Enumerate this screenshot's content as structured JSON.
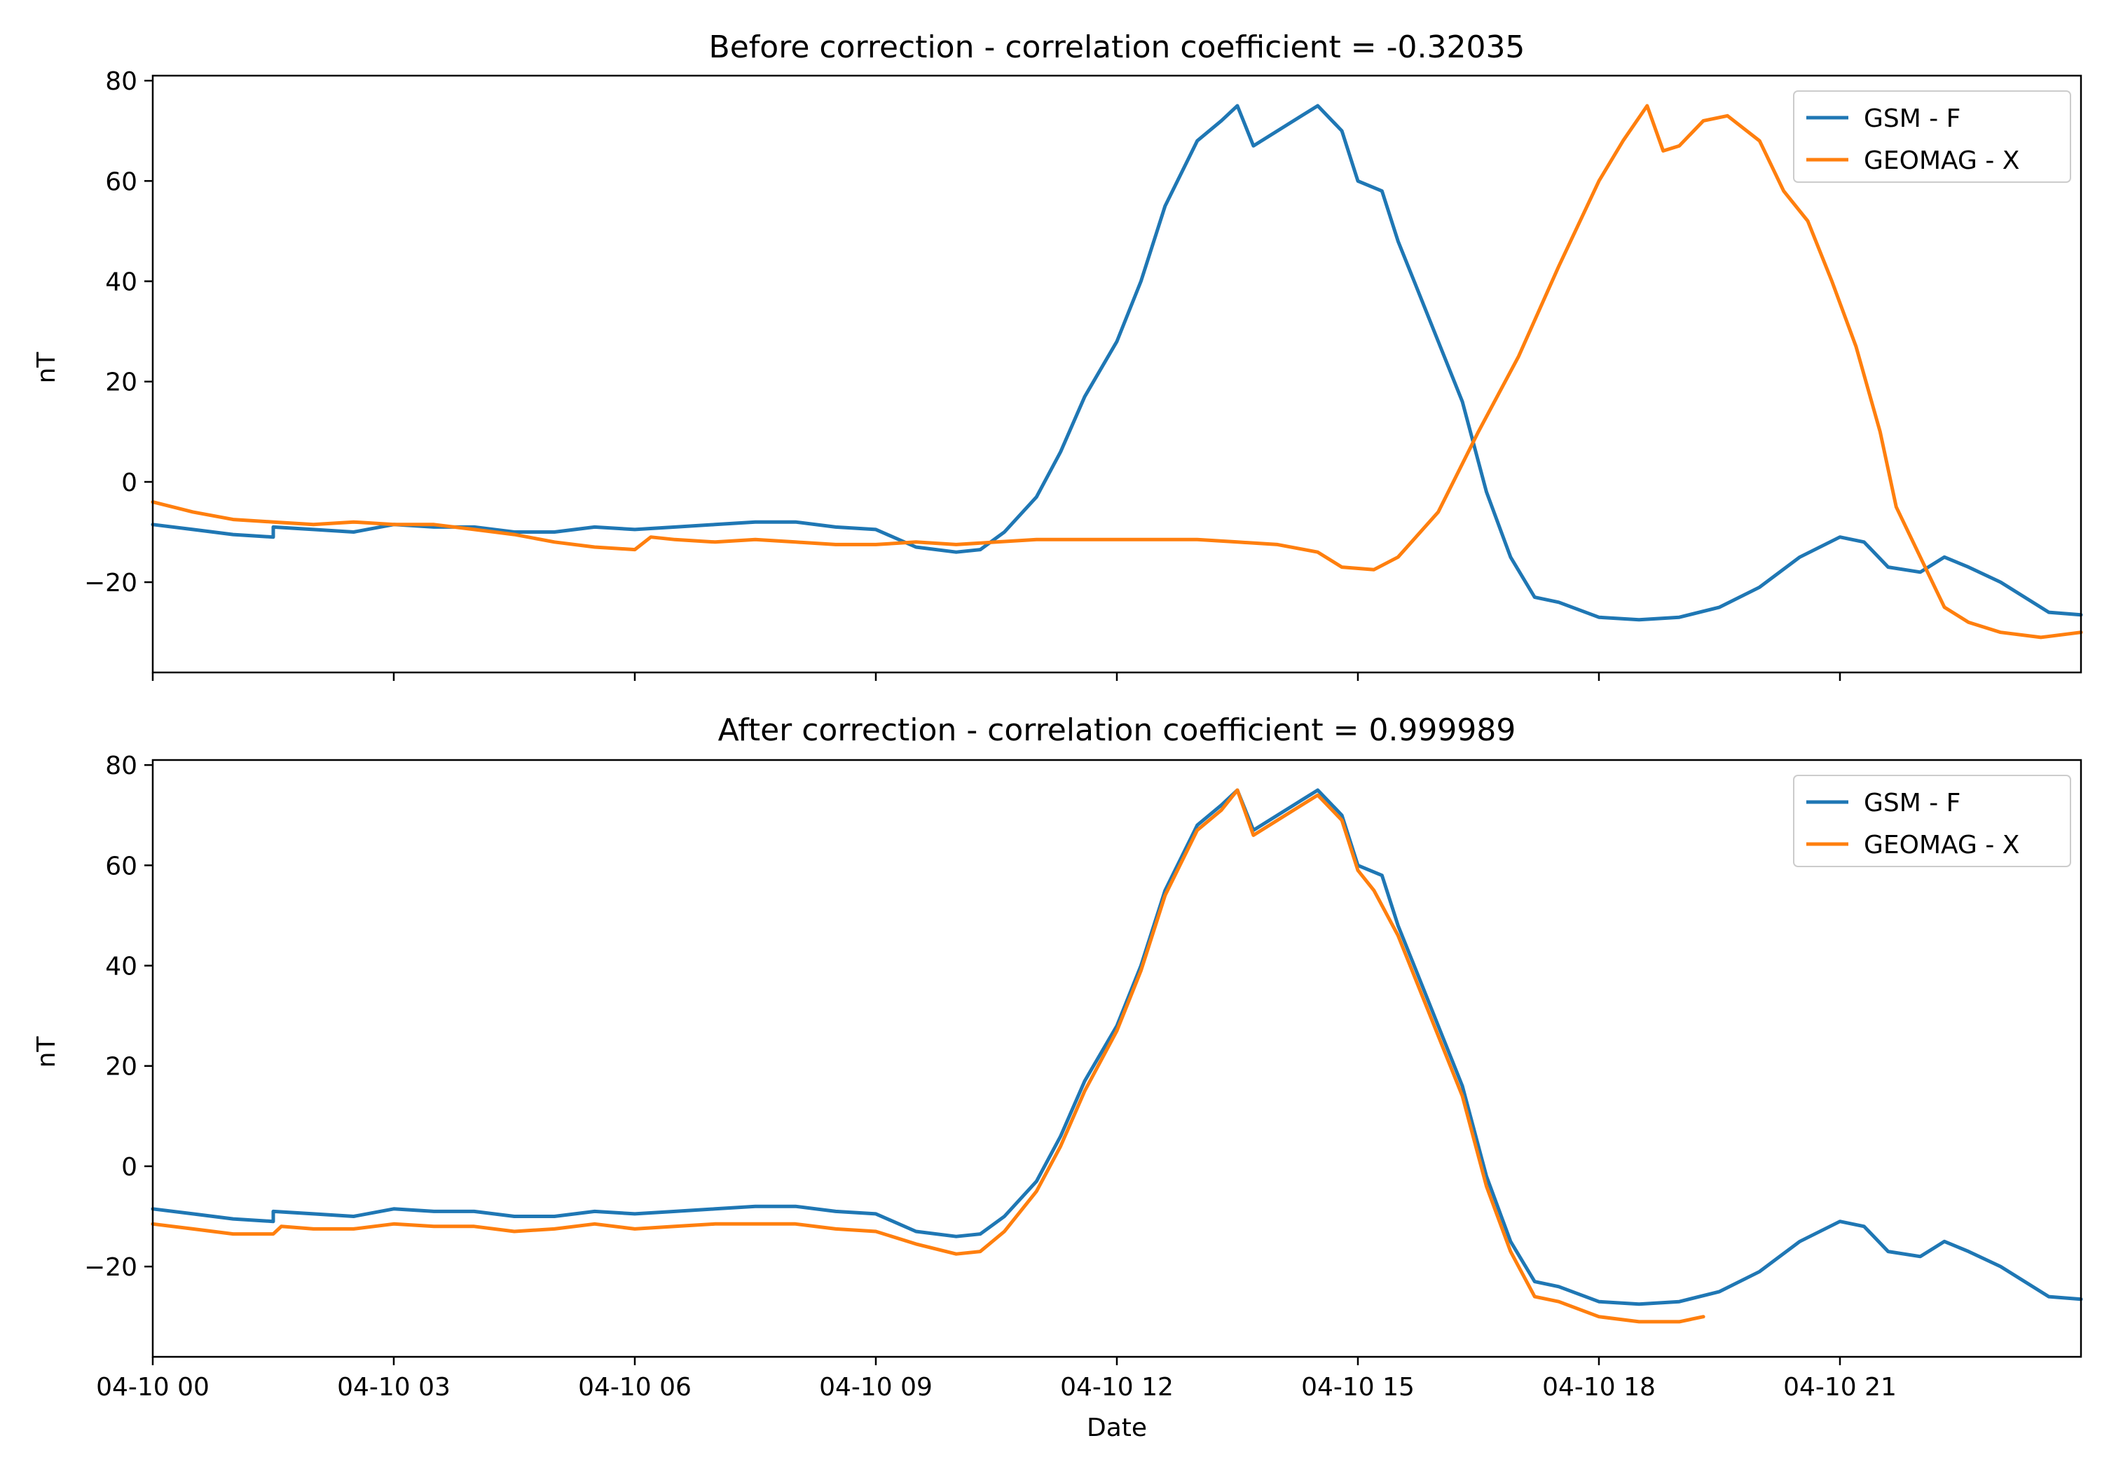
{
  "chart_data": [
    {
      "type": "line",
      "title": "Before correction - correlation coefficient = -0.32035",
      "xlabel": "",
      "ylabel": "nT",
      "xlim": [
        "04-10 00",
        "04-11 00"
      ],
      "ylim": [
        -38,
        81
      ],
      "x_ticks": [
        "04-10 00",
        "04-10 03",
        "04-10 06",
        "04-10 09",
        "04-10 12",
        "04-10 15",
        "04-10 18",
        "04-10 21"
      ],
      "y_ticks": [
        "−20",
        "0",
        "20",
        "40",
        "60",
        "80"
      ],
      "y_tick_values": [
        -20,
        0,
        20,
        40,
        60,
        80
      ],
      "legend": "top-right",
      "series": [
        {
          "name": "GSM - F",
          "color": "#1f77b4",
          "points": [
            [
              0,
              -8.5
            ],
            [
              0.5,
              -9.5
            ],
            [
              1,
              -10.5
            ],
            [
              1.5,
              -11
            ],
            [
              1.5,
              -9
            ],
            [
              2,
              -9.5
            ],
            [
              2.5,
              -10
            ],
            [
              3,
              -8.5
            ],
            [
              3.5,
              -9
            ],
            [
              4,
              -9
            ],
            [
              4.5,
              -10
            ],
            [
              5,
              -10
            ],
            [
              5.5,
              -9
            ],
            [
              6,
              -9.5
            ],
            [
              6.5,
              -9
            ],
            [
              7,
              -8.5
            ],
            [
              7.5,
              -8
            ],
            [
              8,
              -8
            ],
            [
              8.5,
              -9
            ],
            [
              9,
              -9.5
            ],
            [
              9.5,
              -13
            ],
            [
              10,
              -14
            ],
            [
              10.3,
              -13.5
            ],
            [
              10.6,
              -10
            ],
            [
              11,
              -3
            ],
            [
              11.3,
              6
            ],
            [
              11.6,
              17
            ],
            [
              12,
              28
            ],
            [
              12.3,
              40
            ],
            [
              12.6,
              55
            ],
            [
              13,
              68
            ],
            [
              13.3,
              72
            ],
            [
              13.5,
              75
            ],
            [
              13.7,
              67
            ],
            [
              14,
              70
            ],
            [
              14.3,
              73
            ],
            [
              14.5,
              75
            ],
            [
              14.8,
              70
            ],
            [
              15,
              60
            ],
            [
              15.3,
              58
            ],
            [
              15.5,
              48
            ],
            [
              15.7,
              40
            ],
            [
              16,
              28
            ],
            [
              16.3,
              16
            ],
            [
              16.6,
              -2
            ],
            [
              16.9,
              -15
            ],
            [
              17.2,
              -23
            ],
            [
              17.5,
              -24
            ],
            [
              18,
              -27
            ],
            [
              18.5,
              -27.5
            ],
            [
              19,
              -27
            ],
            [
              19.5,
              -25
            ],
            [
              20,
              -21
            ],
            [
              20.5,
              -15
            ],
            [
              21,
              -11
            ],
            [
              21.3,
              -12
            ],
            [
              21.6,
              -17
            ],
            [
              22,
              -18
            ],
            [
              22.3,
              -15
            ],
            [
              22.6,
              -17
            ],
            [
              23,
              -20
            ],
            [
              23.3,
              -23
            ],
            [
              23.6,
              -26
            ],
            [
              24,
              -26.5
            ]
          ]
        },
        {
          "name": "GEOMAG - X",
          "color": "#ff7f0e",
          "points": [
            [
              0,
              -4
            ],
            [
              0.5,
              -6
            ],
            [
              1,
              -7.5
            ],
            [
              1.5,
              -8
            ],
            [
              2,
              -8.5
            ],
            [
              2.5,
              -8
            ],
            [
              3,
              -8.5
            ],
            [
              3.5,
              -8.5
            ],
            [
              4,
              -9.5
            ],
            [
              4.5,
              -10.5
            ],
            [
              5,
              -12
            ],
            [
              5.5,
              -13
            ],
            [
              6,
              -13.5
            ],
            [
              6.2,
              -11
            ],
            [
              6.5,
              -11.5
            ],
            [
              7,
              -12
            ],
            [
              7.5,
              -11.5
            ],
            [
              8,
              -12
            ],
            [
              8.5,
              -12.5
            ],
            [
              9,
              -12.5
            ],
            [
              9.5,
              -12
            ],
            [
              10,
              -12.5
            ],
            [
              10.5,
              -12
            ],
            [
              11,
              -11.5
            ],
            [
              11.5,
              -11.5
            ],
            [
              12,
              -11.5
            ],
            [
              12.5,
              -11.5
            ],
            [
              13,
              -11.5
            ],
            [
              13.5,
              -12
            ],
            [
              14,
              -12.5
            ],
            [
              14.5,
              -14
            ],
            [
              14.8,
              -17
            ],
            [
              15.2,
              -17.5
            ],
            [
              15.5,
              -15
            ],
            [
              16,
              -6
            ],
            [
              16.5,
              10
            ],
            [
              17,
              25
            ],
            [
              17.5,
              43
            ],
            [
              18,
              60
            ],
            [
              18.3,
              68
            ],
            [
              18.6,
              75
            ],
            [
              18.8,
              66
            ],
            [
              19,
              67
            ],
            [
              19.3,
              72
            ],
            [
              19.6,
              73
            ],
            [
              20,
              68
            ],
            [
              20.3,
              58
            ],
            [
              20.6,
              52
            ],
            [
              20.9,
              40
            ],
            [
              21.2,
              27
            ],
            [
              21.5,
              10
            ],
            [
              21.7,
              -5
            ],
            [
              22,
              -15
            ],
            [
              22.3,
              -25
            ],
            [
              22.6,
              -28
            ],
            [
              23,
              -30
            ],
            [
              23.5,
              -31
            ],
            [
              24,
              -30
            ]
          ]
        }
      ]
    },
    {
      "type": "line",
      "title": "After correction - correlation coefficient = 0.999989",
      "xlabel": "Date",
      "ylabel": "nT",
      "xlim": [
        "04-10 00",
        "04-11 00"
      ],
      "ylim": [
        -38,
        81
      ],
      "x_ticks": [
        "04-10 00",
        "04-10 03",
        "04-10 06",
        "04-10 09",
        "04-10 12",
        "04-10 15",
        "04-10 18",
        "04-10 21"
      ],
      "y_ticks": [
        "−20",
        "0",
        "20",
        "40",
        "60",
        "80"
      ],
      "y_tick_values": [
        -20,
        0,
        20,
        40,
        60,
        80
      ],
      "legend": "top-right",
      "series": [
        {
          "name": "GSM - F",
          "color": "#1f77b4",
          "points": [
            [
              0,
              -8.5
            ],
            [
              0.5,
              -9.5
            ],
            [
              1,
              -10.5
            ],
            [
              1.5,
              -11
            ],
            [
              1.5,
              -9
            ],
            [
              2,
              -9.5
            ],
            [
              2.5,
              -10
            ],
            [
              3,
              -8.5
            ],
            [
              3.5,
              -9
            ],
            [
              4,
              -9
            ],
            [
              4.5,
              -10
            ],
            [
              5,
              -10
            ],
            [
              5.5,
              -9
            ],
            [
              6,
              -9.5
            ],
            [
              6.5,
              -9
            ],
            [
              7,
              -8.5
            ],
            [
              7.5,
              -8
            ],
            [
              8,
              -8
            ],
            [
              8.5,
              -9
            ],
            [
              9,
              -9.5
            ],
            [
              9.5,
              -13
            ],
            [
              10,
              -14
            ],
            [
              10.3,
              -13.5
            ],
            [
              10.6,
              -10
            ],
            [
              11,
              -3
            ],
            [
              11.3,
              6
            ],
            [
              11.6,
              17
            ],
            [
              12,
              28
            ],
            [
              12.3,
              40
            ],
            [
              12.6,
              55
            ],
            [
              13,
              68
            ],
            [
              13.3,
              72
            ],
            [
              13.5,
              75
            ],
            [
              13.7,
              67
            ],
            [
              14,
              70
            ],
            [
              14.3,
              73
            ],
            [
              14.5,
              75
            ],
            [
              14.8,
              70
            ],
            [
              15,
              60
            ],
            [
              15.3,
              58
            ],
            [
              15.5,
              48
            ],
            [
              15.7,
              40
            ],
            [
              16,
              28
            ],
            [
              16.3,
              16
            ],
            [
              16.6,
              -2
            ],
            [
              16.9,
              -15
            ],
            [
              17.2,
              -23
            ],
            [
              17.5,
              -24
            ],
            [
              18,
              -27
            ],
            [
              18.5,
              -27.5
            ],
            [
              19,
              -27
            ],
            [
              19.5,
              -25
            ],
            [
              20,
              -21
            ],
            [
              20.5,
              -15
            ],
            [
              21,
              -11
            ],
            [
              21.3,
              -12
            ],
            [
              21.6,
              -17
            ],
            [
              22,
              -18
            ],
            [
              22.3,
              -15
            ],
            [
              22.6,
              -17
            ],
            [
              23,
              -20
            ],
            [
              23.3,
              -23
            ],
            [
              23.6,
              -26
            ],
            [
              24,
              -26.5
            ]
          ]
        },
        {
          "name": "GEOMAG - X",
          "color": "#ff7f0e",
          "points": [
            [
              0,
              -11.5
            ],
            [
              0.5,
              -12.5
            ],
            [
              1,
              -13.5
            ],
            [
              1.5,
              -13.5
            ],
            [
              1.6,
              -12
            ],
            [
              2,
              -12.5
            ],
            [
              2.5,
              -12.5
            ],
            [
              3,
              -11.5
            ],
            [
              3.5,
              -12
            ],
            [
              4,
              -12
            ],
            [
              4.5,
              -13
            ],
            [
              5,
              -12.5
            ],
            [
              5.5,
              -11.5
            ],
            [
              6,
              -12.5
            ],
            [
              6.5,
              -12
            ],
            [
              7,
              -11.5
            ],
            [
              7.5,
              -11.5
            ],
            [
              8,
              -11.5
            ],
            [
              8.5,
              -12.5
            ],
            [
              9,
              -13
            ],
            [
              9.5,
              -15.5
            ],
            [
              10,
              -17.5
            ],
            [
              10.3,
              -17
            ],
            [
              10.6,
              -13
            ],
            [
              11,
              -5
            ],
            [
              11.3,
              4
            ],
            [
              11.6,
              15
            ],
            [
              12,
              27
            ],
            [
              12.3,
              39
            ],
            [
              12.6,
              54
            ],
            [
              13,
              67
            ],
            [
              13.3,
              71
            ],
            [
              13.5,
              75
            ],
            [
              13.7,
              66
            ],
            [
              14,
              69
            ],
            [
              14.3,
              72
            ],
            [
              14.5,
              74
            ],
            [
              14.8,
              69
            ],
            [
              15,
              59
            ],
            [
              15.2,
              55
            ],
            [
              15.5,
              46
            ],
            [
              15.7,
              38
            ],
            [
              16,
              26
            ],
            [
              16.3,
              14
            ],
            [
              16.6,
              -4
            ],
            [
              16.9,
              -17
            ],
            [
              17.2,
              -26
            ],
            [
              17.5,
              -27
            ],
            [
              18,
              -30
            ],
            [
              18.5,
              -31
            ],
            [
              19,
              -31
            ],
            [
              19.3,
              -30
            ]
          ]
        }
      ]
    }
  ]
}
